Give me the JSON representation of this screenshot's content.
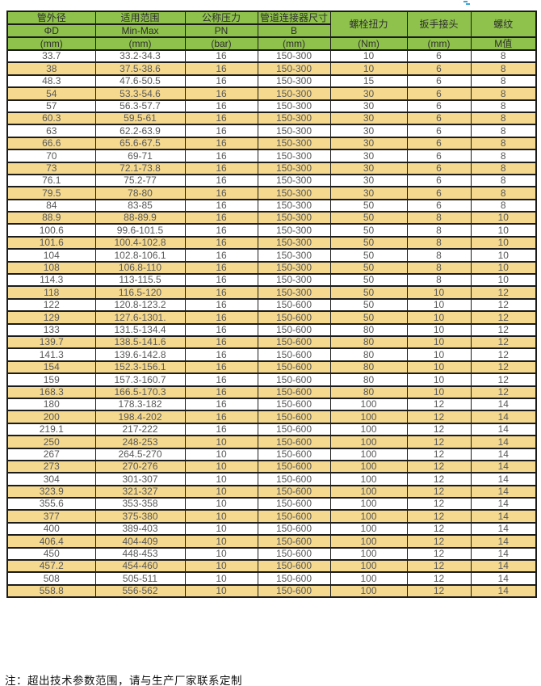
{
  "colors": {
    "page_bg": "#ffffff",
    "header_bg": "#8fc24c",
    "row_alt_bg": "#f5d98f",
    "row_bg": "#ffffff",
    "border_color": "#1c1c1c",
    "data_text": "#595959",
    "header_text": "#2e2e2e",
    "note_text": "#111111",
    "artifact": "#38a7db"
  },
  "table": {
    "header": {
      "c1": {
        "r1": "管外径",
        "r2": "ΦD",
        "r3": "(mm)"
      },
      "c2": {
        "r1": "适用范围",
        "r2": "Min-Max",
        "r3": "(mm)"
      },
      "c3": {
        "r1": "公称压力",
        "r2": "PN",
        "r3": "(bar)"
      },
      "c4": {
        "r1": "管道连接器尺寸",
        "r2": "B",
        "r3": "(mm)"
      },
      "c5": {
        "r1": "螺栓扭力",
        "r3": "(Nm)"
      },
      "c6": {
        "r1": "扳手接头",
        "r3": "(mm)"
      },
      "c7": {
        "r1": "螺纹",
        "r3": "M值"
      }
    },
    "rows": [
      [
        "33.7",
        "33.2-34.3",
        "16",
        "150-300",
        "10",
        "6",
        "8"
      ],
      [
        "38",
        "37.5-38.6",
        "16",
        "150-300",
        "10",
        "6",
        "8"
      ],
      [
        "48.3",
        "47.6-50.5",
        "16",
        "150-300",
        "15",
        "6",
        "8"
      ],
      [
        "54",
        "53.3-54.6",
        "16",
        "150-300",
        "30",
        "6",
        "8"
      ],
      [
        "57",
        "56.3-57.7",
        "16",
        "150-300",
        "30",
        "6",
        "8"
      ],
      [
        "60.3",
        "59.5-61",
        "16",
        "150-300",
        "30",
        "6",
        "8"
      ],
      [
        "63",
        "62.2-63.9",
        "16",
        "150-300",
        "30",
        "6",
        "8"
      ],
      [
        "66.6",
        "65.6-67.5",
        "16",
        "150-300",
        "30",
        "6",
        "8"
      ],
      [
        "70",
        "69-71",
        "16",
        "150-300",
        "30",
        "6",
        "8"
      ],
      [
        "73",
        "72.1-73.8",
        "16",
        "150-300",
        "30",
        "6",
        "8"
      ],
      [
        "76.1",
        "75.2-77",
        "16",
        "150-300",
        "30",
        "6",
        "8"
      ],
      [
        "79.5",
        "78-80",
        "16",
        "150-300",
        "30",
        "6",
        "8"
      ],
      [
        "84",
        "83-85",
        "16",
        "150-300",
        "50",
        "6",
        "8"
      ],
      [
        "88.9",
        "88-89.9",
        "16",
        "150-300",
        "50",
        "8",
        "10"
      ],
      [
        "100.6",
        "99.6-101.5",
        "16",
        "150-300",
        "50",
        "8",
        "10"
      ],
      [
        "101.6",
        "100.4-102.8",
        "16",
        "150-300",
        "50",
        "8",
        "10"
      ],
      [
        "104",
        "102.8-106.1",
        "16",
        "150-300",
        "50",
        "8",
        "10"
      ],
      [
        "108",
        "106.8-110",
        "16",
        "150-300",
        "50",
        "8",
        "10"
      ],
      [
        "114.3",
        "113-115.5",
        "16",
        "150-300",
        "50",
        "8",
        "10"
      ],
      [
        "118",
        "116.5-120",
        "16",
        "150-300",
        "50",
        "10",
        "12"
      ],
      [
        "122",
        "120.8-123.2",
        "16",
        "150-600",
        "50",
        "10",
        "12"
      ],
      [
        "129",
        "127.6-1301.",
        "16",
        "150-600",
        "50",
        "10",
        "12"
      ],
      [
        "133",
        "131.5-134.4",
        "16",
        "150-600",
        "80",
        "10",
        "12"
      ],
      [
        "139.7",
        "138.5-141.6",
        "16",
        "150-600",
        "80",
        "10",
        "12"
      ],
      [
        "141.3",
        "139.6-142.8",
        "16",
        "150-600",
        "80",
        "10",
        "12"
      ],
      [
        "154",
        "152.3-156.1",
        "16",
        "150-600",
        "80",
        "10",
        "12"
      ],
      [
        "159",
        "157.3-160.7",
        "16",
        "150-600",
        "80",
        "10",
        "12"
      ],
      [
        "168.3",
        "166.5-170.3",
        "16",
        "150-600",
        "80",
        "10",
        "12"
      ],
      [
        "180",
        "178.3-182",
        "16",
        "150-600",
        "100",
        "12",
        "14"
      ],
      [
        "200",
        "198.4-202",
        "16",
        "150-600",
        "100",
        "12",
        "14"
      ],
      [
        "219.1",
        "217-222",
        "16",
        "150-600",
        "100",
        "12",
        "14"
      ],
      [
        "250",
        "248-253",
        "10",
        "150-600",
        "100",
        "12",
        "14"
      ],
      [
        "267",
        "264.5-270",
        "10",
        "150-600",
        "100",
        "12",
        "14"
      ],
      [
        "273",
        "270-276",
        "10",
        "150-600",
        "100",
        "12",
        "14"
      ],
      [
        "304",
        "301-307",
        "10",
        "150-600",
        "100",
        "12",
        "14"
      ],
      [
        "323.9",
        "321-327",
        "10",
        "150-600",
        "100",
        "12",
        "14"
      ],
      [
        "355.6",
        "353-358",
        "10",
        "150-600",
        "100",
        "12",
        "14"
      ],
      [
        "377",
        "375-380",
        "10",
        "150-600",
        "100",
        "12",
        "14"
      ],
      [
        "400",
        "389-403",
        "10",
        "150-600",
        "100",
        "12",
        "14"
      ],
      [
        "406.4",
        "404-409",
        "10",
        "150-600",
        "100",
        "12",
        "14"
      ],
      [
        "450",
        "448-453",
        "10",
        "150-600",
        "100",
        "12",
        "14"
      ],
      [
        "457.2",
        "454-460",
        "10",
        "150-600",
        "100",
        "12",
        "14"
      ],
      [
        "508",
        "505-511",
        "10",
        "150-600",
        "100",
        "12",
        "14"
      ],
      [
        "558.8",
        "556-562",
        "10",
        "150-600",
        "100",
        "12",
        "14"
      ]
    ]
  },
  "footer": {
    "note": "注：超出技术参数范围，请与生产厂家联系定制"
  }
}
